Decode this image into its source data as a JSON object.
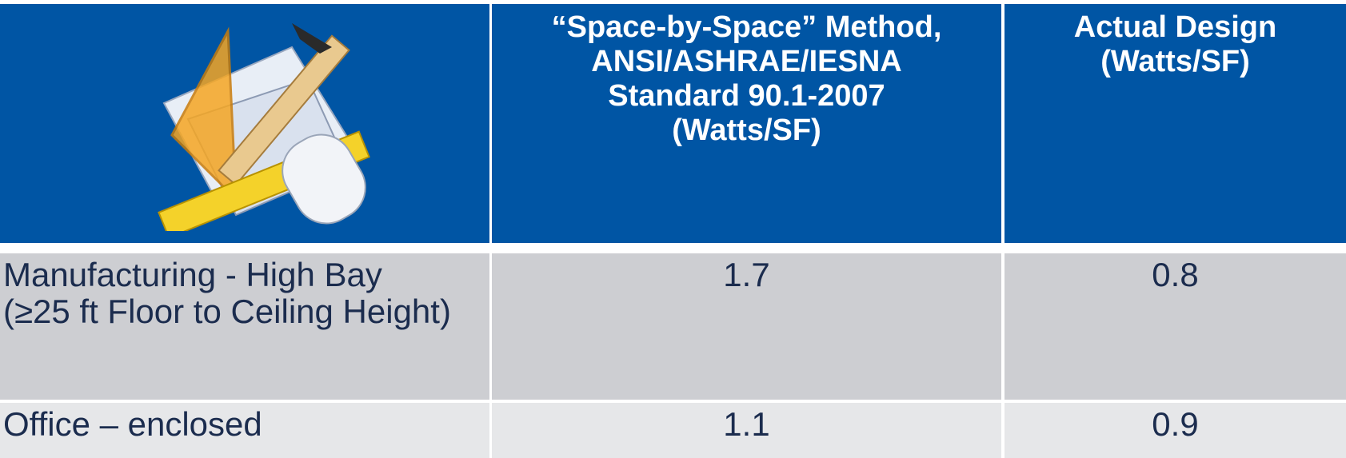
{
  "table": {
    "header": [
      {
        "lines": [
          "“Space-by-Space” Method,",
          "ANSI/ASHRAE/IESNA",
          "Standard 90.1-2007",
          "(Watts/SF)"
        ]
      },
      {
        "lines": [
          "Actual Design",
          "(Watts/SF)"
        ]
      }
    ],
    "rows": [
      [
        "Manufacturing - High Bay (≥25 ft Floor to Ceiling Height)",
        1.7,
        0.8
      ],
      [
        "Office – enclosed",
        1.1,
        0.9
      ]
    ]
  }
}
